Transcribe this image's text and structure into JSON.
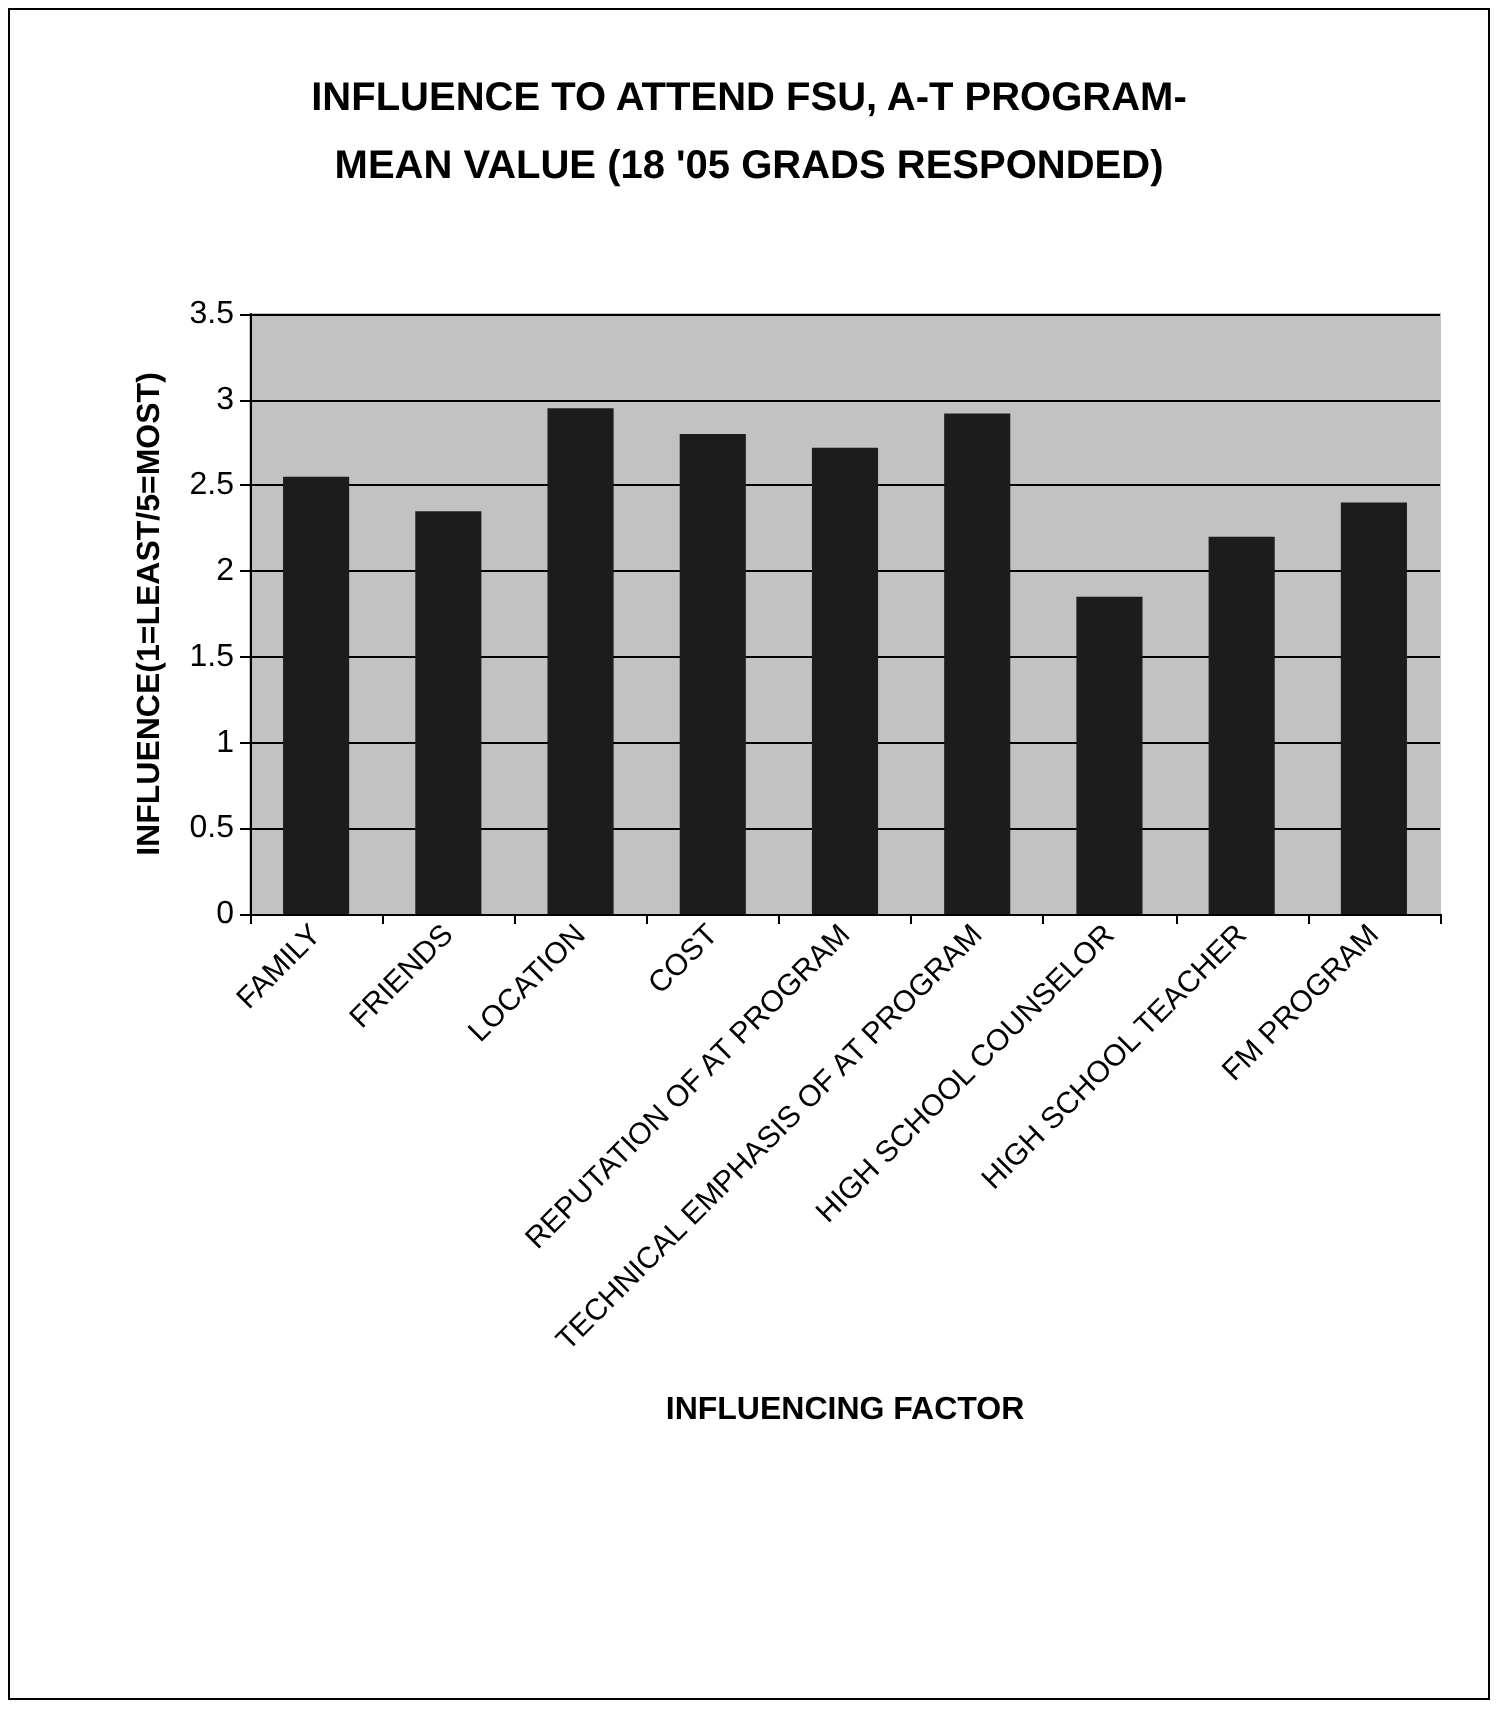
{
  "chart_data": {
    "type": "bar",
    "title": "INFLUENCE TO ATTEND FSU, A-T PROGRAM-\nMEAN VALUE (18 '05 GRADS RESPONDED)",
    "xlabel": "INFLUENCING FACTOR",
    "ylabel": "INFLUENCE(1=LEAST/5=MOST)",
    "categories": [
      "FAMILY",
      "FRIENDS",
      "LOCATION",
      "COST",
      "REPUTATION OF AT PROGRAM",
      "TECHNICAL EMPHASIS OF AT PROGRAM",
      "HIGH SCHOOL COUNSELOR",
      "HIGH SCHOOL TEACHER",
      "FM PROGRAM"
    ],
    "values": [
      2.55,
      2.35,
      2.95,
      2.8,
      2.72,
      2.92,
      1.85,
      2.2,
      2.4
    ],
    "color": "#1c1c1c",
    "ylim": [
      0,
      3.5
    ],
    "yticks": [
      0,
      0.5,
      1,
      1.5,
      2,
      2.5,
      3,
      3.5
    ],
    "grid": "y"
  }
}
